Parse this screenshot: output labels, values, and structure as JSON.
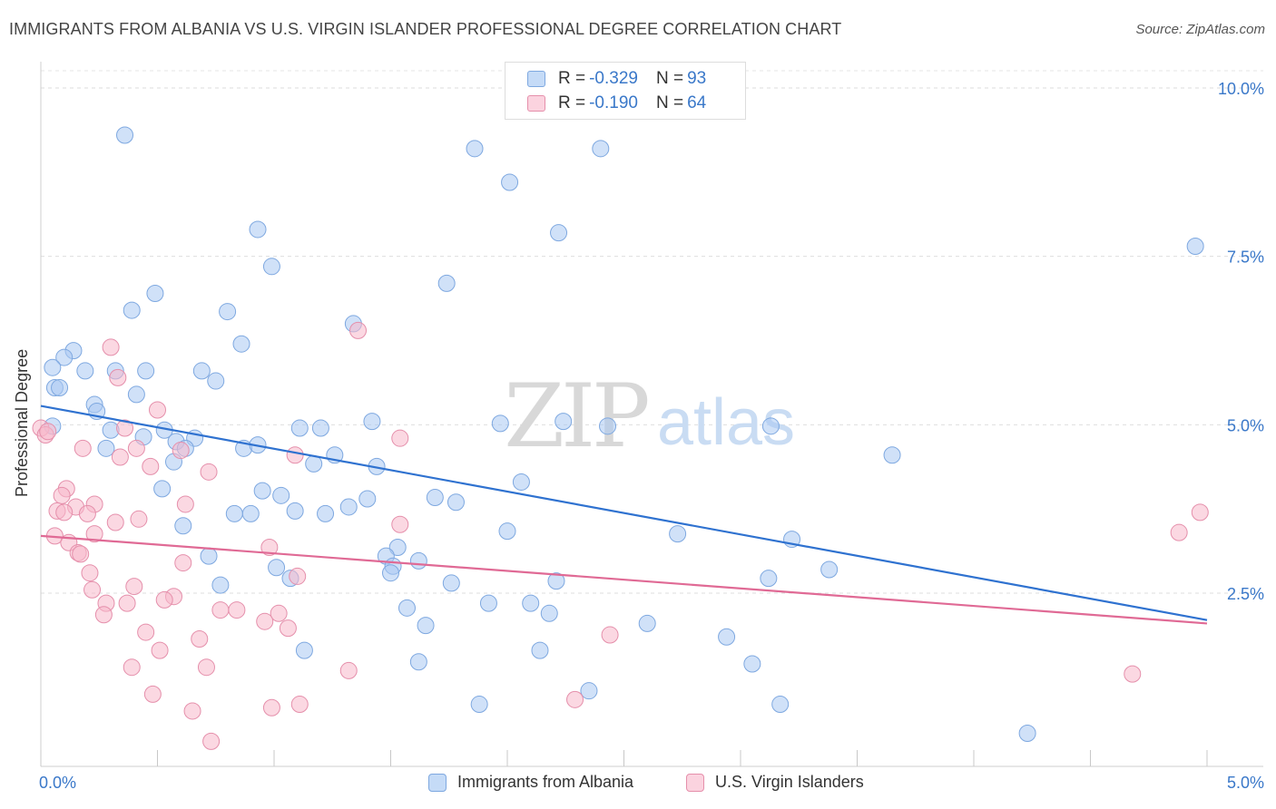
{
  "title": "IMMIGRANTS FROM ALBANIA VS U.S. VIRGIN ISLANDER PROFESSIONAL DEGREE CORRELATION CHART",
  "source": "Source: ZipAtlas.com",
  "watermark": {
    "zip": "ZIP",
    "atlas": "atlas"
  },
  "legend_top": [
    {
      "r_label": "R = ",
      "r_value": "-0.329",
      "n_label": "N = ",
      "n_value": "93",
      "color": "#a9c8f2"
    },
    {
      "r_label": "R = ",
      "r_value": "-0.190",
      "n_label": "N = ",
      "n_value": "64",
      "color": "#f7b8cb"
    }
  ],
  "chart_data": {
    "type": "scatter",
    "title": "IMMIGRANTS FROM ALBANIA VS U.S. VIRGIN ISLANDER PROFESSIONAL DEGREE CORRELATION CHART",
    "xlabel": "",
    "ylabel": "Professional Degree",
    "xlim": [
      0,
      5
    ],
    "ylim": [
      0,
      10.5
    ],
    "x_tick_labels": [
      "0.0%",
      "5.0%"
    ],
    "y_ticks": [
      2.5,
      5.0,
      7.5,
      10.0
    ],
    "y_tick_labels": [
      "2.5%",
      "5.0%",
      "7.5%",
      "10.0%"
    ],
    "grid": "horizontal dashed",
    "legend_position": "bottom-center",
    "series": [
      {
        "name": "Immigrants from Albania",
        "color": "#a9c8f2",
        "stroke": "#7ea8e0",
        "trend_color": "#2f72d0",
        "trend": {
          "x": [
            0,
            5
          ],
          "y": [
            5.28,
            2.1
          ]
        },
        "points": [
          {
            "x": 0.36,
            "y": 9.3
          },
          {
            "x": 0.93,
            "y": 7.9
          },
          {
            "x": 1.86,
            "y": 9.1
          },
          {
            "x": 2.01,
            "y": 8.6
          },
          {
            "x": 2.4,
            "y": 9.1
          },
          {
            "x": 2.22,
            "y": 7.85
          },
          {
            "x": 4.95,
            "y": 7.65
          },
          {
            "x": 0.49,
            "y": 6.95
          },
          {
            "x": 0.99,
            "y": 7.35
          },
          {
            "x": 1.74,
            "y": 7.1
          },
          {
            "x": 0.39,
            "y": 6.7
          },
          {
            "x": 0.8,
            "y": 6.68
          },
          {
            "x": 1.34,
            "y": 6.5
          },
          {
            "x": 0.86,
            "y": 6.2
          },
          {
            "x": 0.14,
            "y": 6.1
          },
          {
            "x": 0.1,
            "y": 6.0
          },
          {
            "x": 0.05,
            "y": 5.85
          },
          {
            "x": 0.19,
            "y": 5.8
          },
          {
            "x": 0.32,
            "y": 5.8
          },
          {
            "x": 0.45,
            "y": 5.8
          },
          {
            "x": 0.69,
            "y": 5.8
          },
          {
            "x": 0.75,
            "y": 5.65
          },
          {
            "x": 0.06,
            "y": 5.55
          },
          {
            "x": 0.08,
            "y": 5.55
          },
          {
            "x": 0.41,
            "y": 5.45
          },
          {
            "x": 0.23,
            "y": 5.3
          },
          {
            "x": 0.24,
            "y": 5.2
          },
          {
            "x": 1.42,
            "y": 5.05
          },
          {
            "x": 1.97,
            "y": 5.02
          },
          {
            "x": 2.24,
            "y": 5.05
          },
          {
            "x": 3.13,
            "y": 4.98
          },
          {
            "x": 0.05,
            "y": 4.98
          },
          {
            "x": 0.3,
            "y": 4.92
          },
          {
            "x": 0.53,
            "y": 4.92
          },
          {
            "x": 1.11,
            "y": 4.95
          },
          {
            "x": 1.2,
            "y": 4.95
          },
          {
            "x": 0.44,
            "y": 4.82
          },
          {
            "x": 0.66,
            "y": 4.8
          },
          {
            "x": 0.58,
            "y": 4.75
          },
          {
            "x": 0.62,
            "y": 4.65
          },
          {
            "x": 0.28,
            "y": 4.65
          },
          {
            "x": 0.87,
            "y": 4.65
          },
          {
            "x": 0.93,
            "y": 4.7
          },
          {
            "x": 1.26,
            "y": 4.55
          },
          {
            "x": 3.65,
            "y": 4.55
          },
          {
            "x": 0.57,
            "y": 4.45
          },
          {
            "x": 1.17,
            "y": 4.42
          },
          {
            "x": 1.44,
            "y": 4.38
          },
          {
            "x": 2.06,
            "y": 4.15
          },
          {
            "x": 0.52,
            "y": 4.05
          },
          {
            "x": 0.95,
            "y": 4.02
          },
          {
            "x": 1.03,
            "y": 3.95
          },
          {
            "x": 1.4,
            "y": 3.9
          },
          {
            "x": 1.69,
            "y": 3.92
          },
          {
            "x": 1.78,
            "y": 3.85
          },
          {
            "x": 1.32,
            "y": 3.78
          },
          {
            "x": 0.83,
            "y": 3.68
          },
          {
            "x": 0.9,
            "y": 3.68
          },
          {
            "x": 1.09,
            "y": 3.72
          },
          {
            "x": 1.22,
            "y": 3.68
          },
          {
            "x": 0.61,
            "y": 3.5
          },
          {
            "x": 2.0,
            "y": 3.42
          },
          {
            "x": 2.73,
            "y": 3.38
          },
          {
            "x": 3.22,
            "y": 3.3
          },
          {
            "x": 1.53,
            "y": 3.18
          },
          {
            "x": 0.72,
            "y": 3.05
          },
          {
            "x": 1.48,
            "y": 3.05
          },
          {
            "x": 1.62,
            "y": 2.98
          },
          {
            "x": 1.51,
            "y": 2.9
          },
          {
            "x": 1.01,
            "y": 2.88
          },
          {
            "x": 1.5,
            "y": 2.8
          },
          {
            "x": 1.07,
            "y": 2.72
          },
          {
            "x": 3.12,
            "y": 2.72
          },
          {
            "x": 3.38,
            "y": 2.85
          },
          {
            "x": 0.77,
            "y": 2.62
          },
          {
            "x": 1.76,
            "y": 2.65
          },
          {
            "x": 2.21,
            "y": 2.68
          },
          {
            "x": 1.57,
            "y": 2.28
          },
          {
            "x": 1.92,
            "y": 2.35
          },
          {
            "x": 2.1,
            "y": 2.35
          },
          {
            "x": 2.18,
            "y": 2.2
          },
          {
            "x": 1.65,
            "y": 2.02
          },
          {
            "x": 2.6,
            "y": 2.05
          },
          {
            "x": 2.94,
            "y": 1.85
          },
          {
            "x": 1.13,
            "y": 1.65
          },
          {
            "x": 2.14,
            "y": 1.65
          },
          {
            "x": 1.62,
            "y": 1.48
          },
          {
            "x": 3.05,
            "y": 1.45
          },
          {
            "x": 2.35,
            "y": 1.05
          },
          {
            "x": 1.88,
            "y": 0.85
          },
          {
            "x": 3.17,
            "y": 0.85
          },
          {
            "x": 4.23,
            "y": 0.42
          },
          {
            "x": 2.43,
            "y": 4.98
          }
        ]
      },
      {
        "name": "U.S. Virgin Islanders",
        "color": "#f7b8cb",
        "stroke": "#e58fab",
        "trend_color": "#e06a95",
        "trend": {
          "x": [
            0,
            5
          ],
          "y": [
            3.35,
            2.05
          ]
        },
        "points": [
          {
            "x": 1.36,
            "y": 6.4
          },
          {
            "x": 0.3,
            "y": 6.15
          },
          {
            "x": 0.33,
            "y": 5.7
          },
          {
            "x": 0.5,
            "y": 5.22
          },
          {
            "x": 0.0,
            "y": 4.95
          },
          {
            "x": 0.36,
            "y": 4.95
          },
          {
            "x": 0.02,
            "y": 4.85
          },
          {
            "x": 1.54,
            "y": 4.8
          },
          {
            "x": 0.18,
            "y": 4.65
          },
          {
            "x": 0.41,
            "y": 4.65
          },
          {
            "x": 0.6,
            "y": 4.62
          },
          {
            "x": 1.09,
            "y": 4.55
          },
          {
            "x": 0.34,
            "y": 4.52
          },
          {
            "x": 0.47,
            "y": 4.38
          },
          {
            "x": 0.72,
            "y": 4.3
          },
          {
            "x": 0.11,
            "y": 4.05
          },
          {
            "x": 0.09,
            "y": 3.95
          },
          {
            "x": 0.23,
            "y": 3.82
          },
          {
            "x": 0.15,
            "y": 3.78
          },
          {
            "x": 0.07,
            "y": 3.72
          },
          {
            "x": 0.62,
            "y": 3.82
          },
          {
            "x": 0.1,
            "y": 3.7
          },
          {
            "x": 0.2,
            "y": 3.68
          },
          {
            "x": 0.32,
            "y": 3.55
          },
          {
            "x": 0.42,
            "y": 3.6
          },
          {
            "x": 1.54,
            "y": 3.52
          },
          {
            "x": 0.06,
            "y": 3.35
          },
          {
            "x": 0.23,
            "y": 3.38
          },
          {
            "x": 0.12,
            "y": 3.25
          },
          {
            "x": 0.16,
            "y": 3.1
          },
          {
            "x": 0.17,
            "y": 3.08
          },
          {
            "x": 0.98,
            "y": 3.18
          },
          {
            "x": 0.61,
            "y": 2.95
          },
          {
            "x": 0.21,
            "y": 2.8
          },
          {
            "x": 1.1,
            "y": 2.75
          },
          {
            "x": 0.22,
            "y": 2.55
          },
          {
            "x": 0.4,
            "y": 2.6
          },
          {
            "x": 0.57,
            "y": 2.45
          },
          {
            "x": 0.53,
            "y": 2.4
          },
          {
            "x": 0.28,
            "y": 2.35
          },
          {
            "x": 0.37,
            "y": 2.35
          },
          {
            "x": 0.77,
            "y": 2.25
          },
          {
            "x": 0.84,
            "y": 2.25
          },
          {
            "x": 1.02,
            "y": 2.2
          },
          {
            "x": 0.27,
            "y": 2.18
          },
          {
            "x": 0.96,
            "y": 2.08
          },
          {
            "x": 1.06,
            "y": 1.98
          },
          {
            "x": 0.45,
            "y": 1.92
          },
          {
            "x": 0.68,
            "y": 1.82
          },
          {
            "x": 2.44,
            "y": 1.88
          },
          {
            "x": 0.51,
            "y": 1.65
          },
          {
            "x": 0.39,
            "y": 1.4
          },
          {
            "x": 0.71,
            "y": 1.4
          },
          {
            "x": 1.32,
            "y": 1.35
          },
          {
            "x": 4.68,
            "y": 1.3
          },
          {
            "x": 0.48,
            "y": 1.0
          },
          {
            "x": 2.29,
            "y": 0.92
          },
          {
            "x": 1.11,
            "y": 0.85
          },
          {
            "x": 0.99,
            "y": 0.8
          },
          {
            "x": 0.65,
            "y": 0.75
          },
          {
            "x": 0.73,
            "y": 0.3
          },
          {
            "x": 4.88,
            "y": 3.4
          },
          {
            "x": 4.97,
            "y": 3.7
          },
          {
            "x": 0.03,
            "y": 4.9
          }
        ]
      }
    ]
  }
}
